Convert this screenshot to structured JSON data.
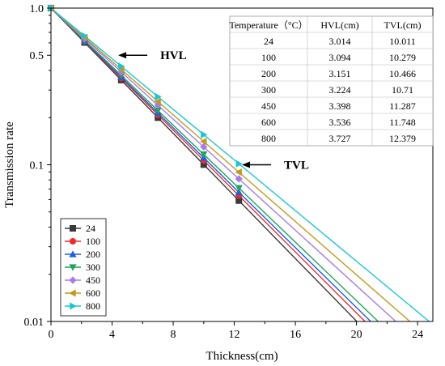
{
  "chart_data": {
    "type": "line",
    "xlabel": "Thickness(cm)",
    "ylabel": "Transmission rate",
    "xlim": [
      0,
      25
    ],
    "ylim": [
      0.01,
      1.0
    ],
    "yscale": "log",
    "grid": false,
    "legend_placement": "bottom-left",
    "x_ticks": [
      0,
      4,
      8,
      12,
      16,
      20,
      24
    ],
    "x_tick_labels": [
      "0",
      "4",
      "8",
      "12",
      "16",
      "20",
      "24"
    ],
    "y_ticks": [
      1.0,
      0.5,
      0.1,
      0.01
    ],
    "y_tick_labels": [
      "1.0",
      "0.5",
      "0.1",
      "0.01"
    ],
    "marker_x": [
      0,
      2.2,
      4.6,
      7.0,
      10.0,
      12.3
    ],
    "series": [
      {
        "name": "24",
        "color": "#3a3a3a",
        "marker": "square",
        "tvl": 10.011
      },
      {
        "name": "100",
        "color": "#f02a2a",
        "marker": "circle",
        "tvl": 10.279
      },
      {
        "name": "200",
        "color": "#1f5fe0",
        "marker": "triangle-up",
        "tvl": 10.466
      },
      {
        "name": "300",
        "color": "#1fa65c",
        "marker": "triangle-down",
        "tvl": 10.71
      },
      {
        "name": "450",
        "color": "#a77ce8",
        "marker": "diamond",
        "tvl": 11.287
      },
      {
        "name": "600",
        "color": "#c19a1d",
        "marker": "triangle-left",
        "tvl": 11.748
      },
      {
        "name": "800",
        "color": "#19c7d3",
        "marker": "triangle-right",
        "tvl": 12.379
      }
    ],
    "table": {
      "headers": [
        "Temperature（°C）",
        "HVL(cm)",
        "TVL(cm)"
      ],
      "rows": [
        [
          "24",
          "3.014",
          "10.011"
        ],
        [
          "100",
          "3.094",
          "10.279"
        ],
        [
          "200",
          "3.151",
          "10.466"
        ],
        [
          "300",
          "3.224",
          "10.71"
        ],
        [
          "450",
          "3.398",
          "11.287"
        ],
        [
          "600",
          "3.536",
          "11.748"
        ],
        [
          "800",
          "3.727",
          "12.379"
        ]
      ]
    },
    "annotations": [
      {
        "text": "HVL",
        "x": 4.4,
        "y": 0.5
      },
      {
        "text": "TVL",
        "x": 12.5,
        "y": 0.1
      }
    ]
  }
}
